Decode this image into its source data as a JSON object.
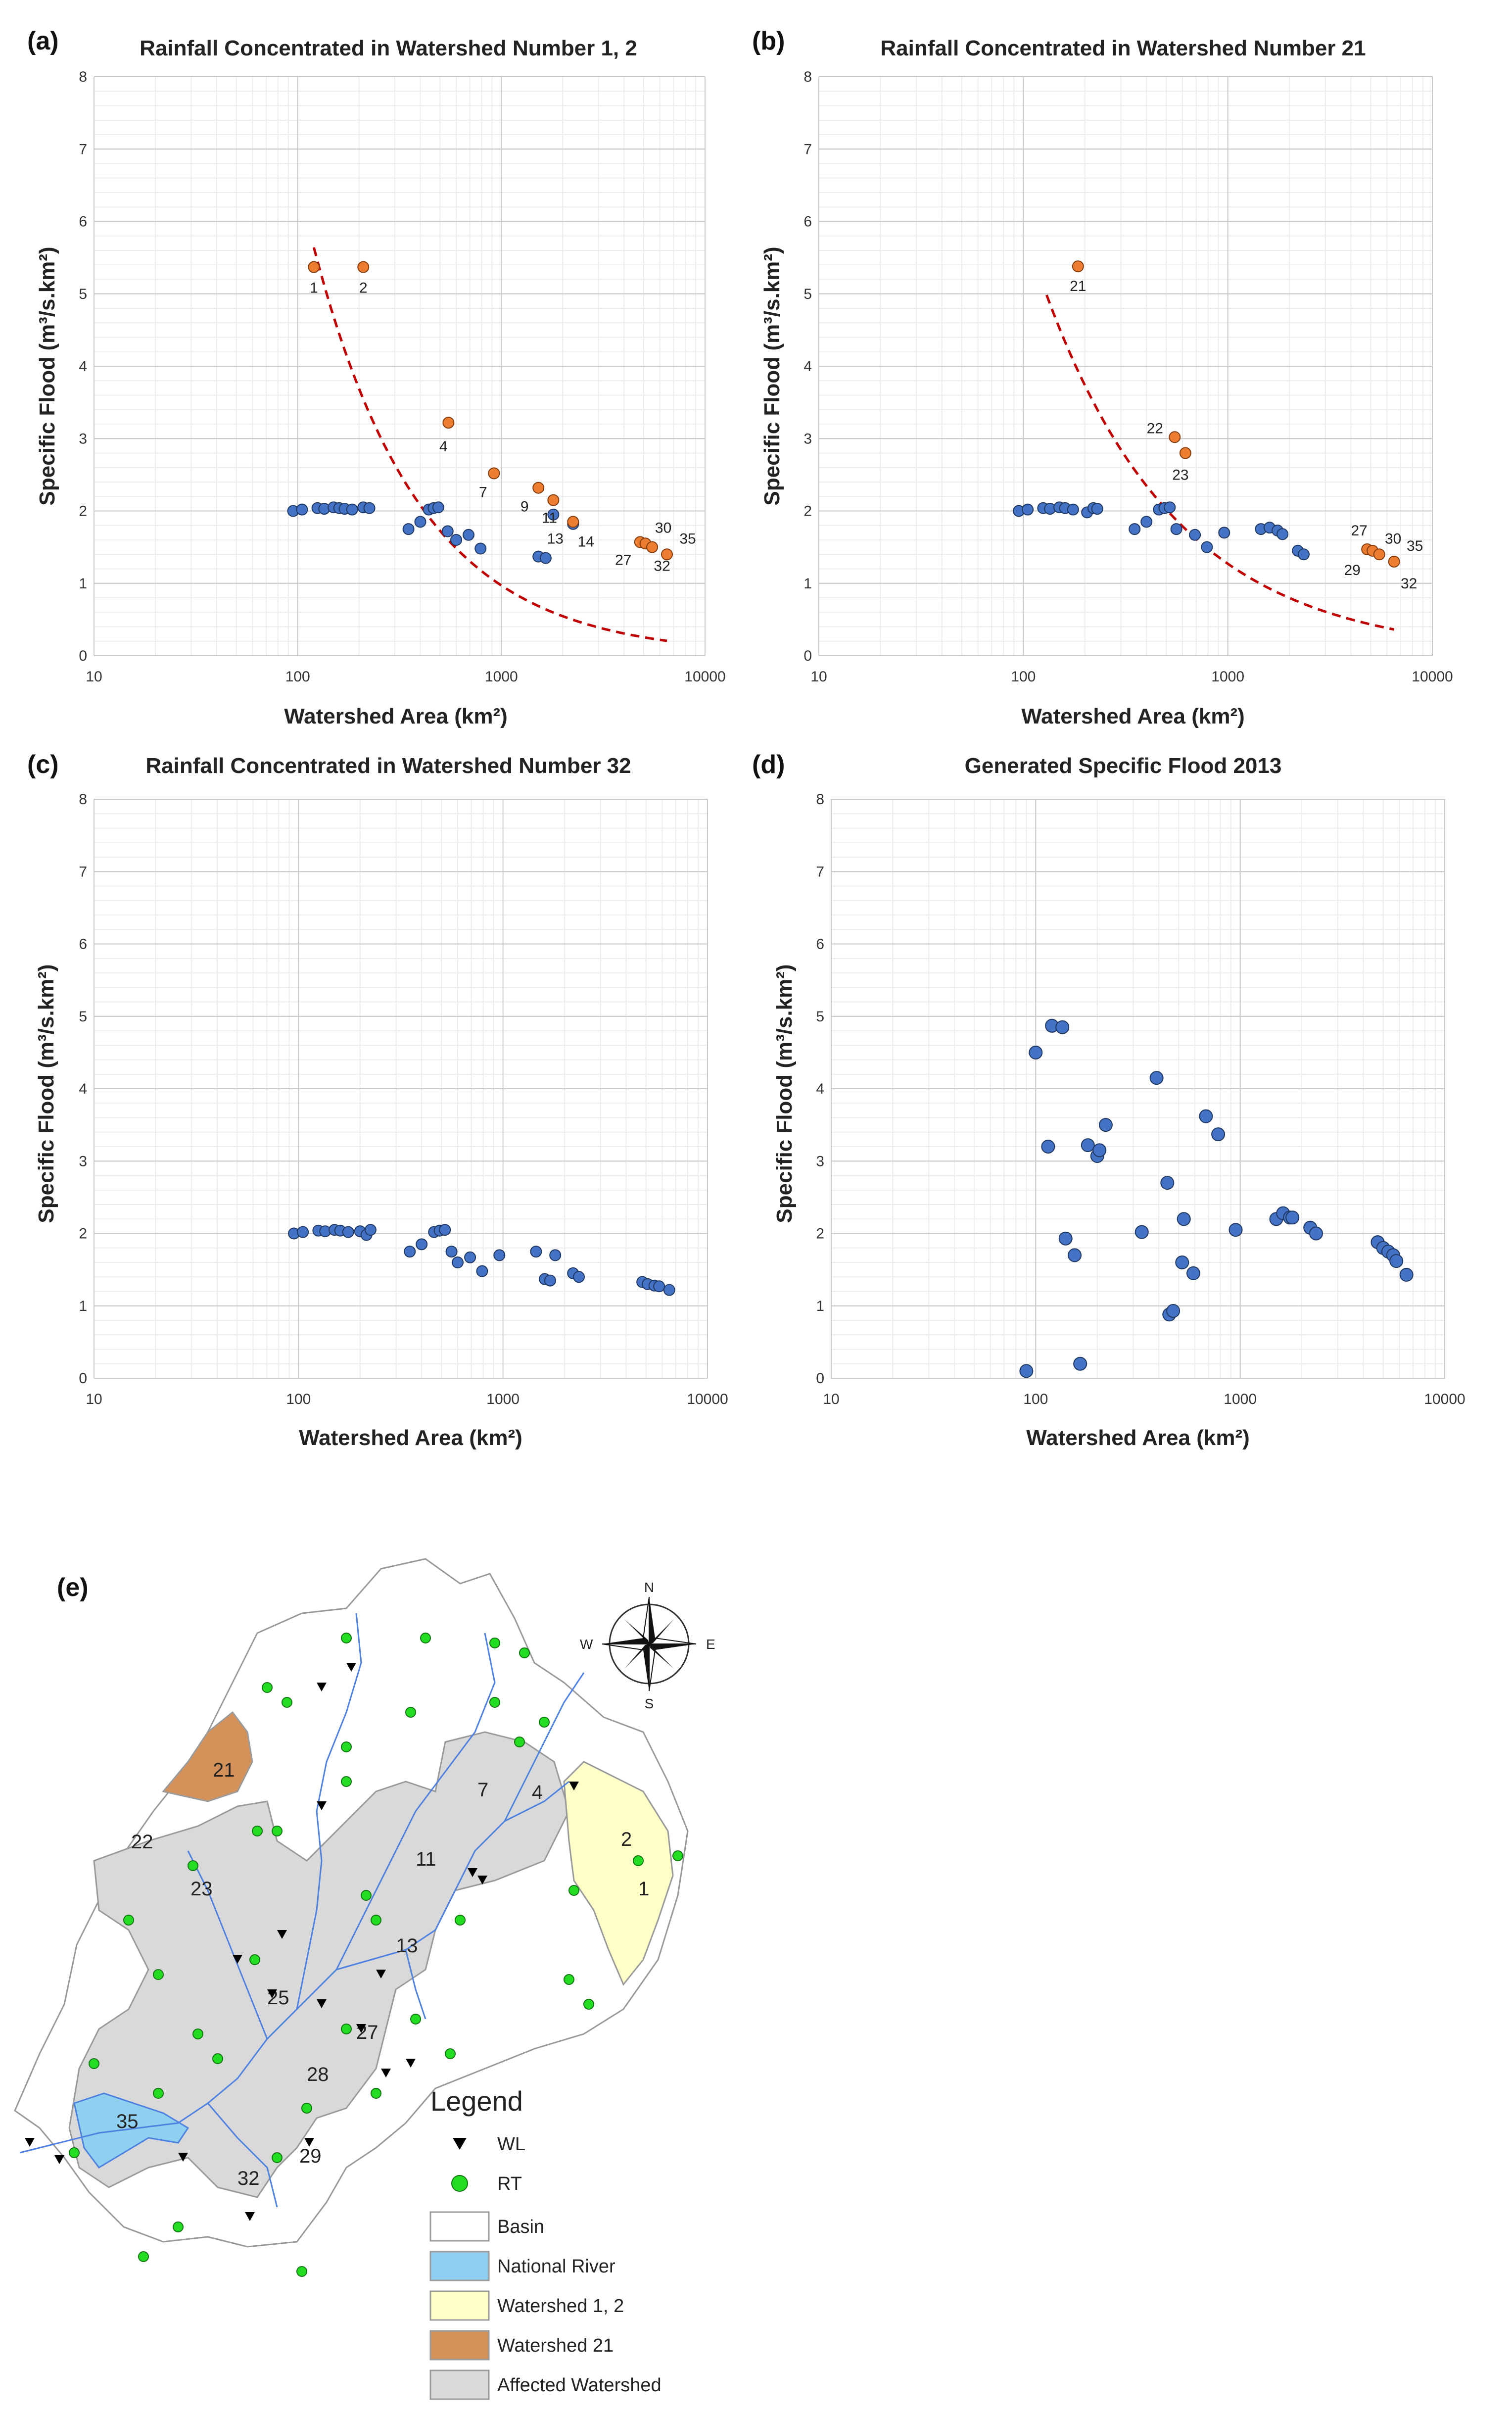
{
  "colors": {
    "blue_point": "#4472c4",
    "blue_edge": "#1f3864",
    "orange_point": "#ed7d31",
    "orange_edge": "#843c0c",
    "trend": "#c00000",
    "watershed_12": "#ffffc8",
    "watershed_21": "#d4925a",
    "affected": "#d9d9d9",
    "river": "#4f81e0",
    "national_river": "#8fd0f0",
    "rt": "#22dd22"
  },
  "chart_data": [
    {
      "panel": "(a)",
      "type": "scatter",
      "title": "Rainfall Concentrated in Watershed Number 1, 2",
      "xlabel": "Watershed Area (km²)",
      "ylabel": "Specific Flood (m³/s.km²)",
      "xscale": "log",
      "xlim": [
        10,
        10000
      ],
      "ylim": [
        0,
        8
      ],
      "xticks": [
        "10",
        "100",
        "1000",
        "10000"
      ],
      "yticks": [
        "0",
        "1",
        "2",
        "3",
        "4",
        "5",
        "6",
        "7",
        "8"
      ],
      "grid": true,
      "series": [
        {
          "style": "blue",
          "points": [
            [
              95,
              2.0
            ],
            [
              105,
              2.02
            ],
            [
              125,
              2.04
            ],
            [
              135,
              2.03
            ],
            [
              150,
              2.05
            ],
            [
              160,
              2.04
            ],
            [
              170,
              2.03
            ],
            [
              185,
              2.02
            ],
            [
              210,
              2.05
            ],
            [
              225,
              2.04
            ],
            [
              350,
              1.75
            ],
            [
              400,
              1.85
            ],
            [
              440,
              2.02
            ],
            [
              465,
              2.04
            ],
            [
              490,
              2.05
            ],
            [
              545,
              1.72
            ],
            [
              600,
              1.6
            ],
            [
              690,
              1.67
            ],
            [
              790,
              1.48
            ],
            [
              1520,
              1.37
            ],
            [
              1650,
              1.35
            ],
            [
              1800,
              1.95
            ],
            [
              2250,
              1.82
            ]
          ]
        },
        {
          "style": "orange",
          "points": [
            [
              120,
              5.37
            ],
            [
              210,
              5.37
            ],
            [
              550,
              3.22
            ],
            [
              920,
              2.52
            ],
            [
              1520,
              2.32
            ],
            [
              1800,
              2.15
            ],
            [
              2250,
              1.85
            ],
            [
              4800,
              1.57
            ],
            [
              5100,
              1.55
            ],
            [
              5500,
              1.5
            ],
            [
              6500,
              1.4
            ]
          ]
        }
      ],
      "trend": {
        "x": [
          120,
          6500
        ],
        "a": 300,
        "b": -0.83
      },
      "point_labels": [
        {
          "text": "1",
          "x": 120,
          "y": 5.37
        },
        {
          "text": "2",
          "x": 210,
          "y": 5.37
        },
        {
          "text": "4",
          "x": 550,
          "y": 3.22
        },
        {
          "text": "7",
          "x": 920,
          "y": 2.52
        },
        {
          "text": "9",
          "x": 1520,
          "y": 2.32
        },
        {
          "text": "11",
          "x": 1800,
          "y": 2.15
        },
        {
          "text": "13",
          "x": 2250,
          "y": 1.85
        },
        {
          "text": "14",
          "x": 2250,
          "y": 1.85
        },
        {
          "text": "30",
          "x": 5100,
          "y": 1.55
        },
        {
          "text": "35",
          "x": 6500,
          "y": 1.4
        },
        {
          "text": "27",
          "x": 4800,
          "y": 1.57
        },
        {
          "text": "32",
          "x": 5500,
          "y": 1.5
        }
      ]
    },
    {
      "panel": "(b)",
      "type": "scatter",
      "title": "Rainfall Concentrated in Watershed Number 21",
      "xlabel": "Watershed Area (km²)",
      "ylabel": "Specific Flood (m³/s.km²)",
      "xscale": "log",
      "xlim": [
        10,
        10000
      ],
      "ylim": [
        0,
        8
      ],
      "xticks": [
        "10",
        "100",
        "1000",
        "10000"
      ],
      "yticks": [
        "0",
        "1",
        "2",
        "3",
        "4",
        "5",
        "6",
        "7",
        "8"
      ],
      "grid": true,
      "series": [
        {
          "style": "blue",
          "points": [
            [
              95,
              2.0
            ],
            [
              105,
              2.02
            ],
            [
              125,
              2.04
            ],
            [
              135,
              2.03
            ],
            [
              150,
              2.05
            ],
            [
              160,
              2.04
            ],
            [
              175,
              2.02
            ],
            [
              205,
              1.98
            ],
            [
              220,
              2.04
            ],
            [
              230,
              2.03
            ],
            [
              350,
              1.75
            ],
            [
              400,
              1.85
            ],
            [
              460,
              2.02
            ],
            [
              490,
              2.04
            ],
            [
              520,
              2.05
            ],
            [
              560,
              1.75
            ],
            [
              690,
              1.67
            ],
            [
              790,
              1.5
            ],
            [
              960,
              1.7
            ],
            [
              1450,
              1.75
            ],
            [
              1600,
              1.77
            ],
            [
              1750,
              1.73
            ],
            [
              1850,
              1.68
            ],
            [
              2200,
              1.45
            ],
            [
              2350,
              1.4
            ]
          ]
        },
        {
          "style": "orange",
          "points": [
            [
              185,
              5.38
            ],
            [
              550,
              3.02
            ],
            [
              620,
              2.8
            ],
            [
              4800,
              1.47
            ],
            [
              5100,
              1.45
            ],
            [
              5500,
              1.4
            ],
            [
              6500,
              1.3
            ]
          ]
        }
      ],
      "trend": {
        "x": [
          130,
          6500
        ],
        "a": 130,
        "b": -0.67
      },
      "point_labels": [
        {
          "text": "21",
          "x": 185,
          "y": 5.38
        },
        {
          "text": "22",
          "x": 550,
          "y": 3.02
        },
        {
          "text": "23",
          "x": 620,
          "y": 2.8
        },
        {
          "text": "27",
          "x": 4800,
          "y": 1.47
        },
        {
          "text": "30",
          "x": 5500,
          "y": 1.4
        },
        {
          "text": "35",
          "x": 6500,
          "y": 1.3
        },
        {
          "text": "29",
          "x": 4800,
          "y": 1.47
        },
        {
          "text": "32",
          "x": 6500,
          "y": 1.3
        }
      ]
    },
    {
      "panel": "(c)",
      "type": "scatter",
      "title": "Rainfall Concentrated in Watershed Number 32",
      "xlabel": "Watershed Area (km²)",
      "ylabel": "Specific Flood (m³/s.km²)",
      "xscale": "log",
      "xlim": [
        10,
        10000
      ],
      "ylim": [
        0,
        8
      ],
      "xticks": [
        "10",
        "100",
        "1000",
        "10000"
      ],
      "yticks": [
        "0",
        "1",
        "2",
        "3",
        "4",
        "5",
        "6",
        "7",
        "8"
      ],
      "grid": true,
      "series": [
        {
          "style": "blue",
          "points": [
            [
              95,
              2.0
            ],
            [
              105,
              2.02
            ],
            [
              125,
              2.04
            ],
            [
              135,
              2.03
            ],
            [
              150,
              2.05
            ],
            [
              160,
              2.04
            ],
            [
              175,
              2.02
            ],
            [
              200,
              2.03
            ],
            [
              215,
              1.98
            ],
            [
              225,
              2.05
            ],
            [
              350,
              1.75
            ],
            [
              400,
              1.85
            ],
            [
              460,
              2.02
            ],
            [
              490,
              2.04
            ],
            [
              520,
              2.05
            ],
            [
              560,
              1.75
            ],
            [
              600,
              1.6
            ],
            [
              690,
              1.67
            ],
            [
              790,
              1.48
            ],
            [
              960,
              1.7
            ],
            [
              1450,
              1.75
            ],
            [
              1600,
              1.37
            ],
            [
              1700,
              1.35
            ],
            [
              1800,
              1.7
            ],
            [
              2200,
              1.45
            ],
            [
              2350,
              1.4
            ],
            [
              4800,
              1.33
            ],
            [
              5100,
              1.3
            ],
            [
              5500,
              1.28
            ],
            [
              5800,
              1.27
            ],
            [
              6500,
              1.22
            ]
          ]
        }
      ]
    },
    {
      "panel": "(d)",
      "type": "scatter",
      "title": "Generated Specific Flood 2013",
      "xlabel": "Watershed Area (km²)",
      "ylabel": "Specific Flood (m³/s.km²)",
      "xscale": "log",
      "xlim": [
        10,
        10000
      ],
      "ylim": [
        0,
        8
      ],
      "xticks": [
        "10",
        "100",
        "1000",
        "10000"
      ],
      "yticks": [
        "0",
        "1",
        "2",
        "3",
        "4",
        "5",
        "6",
        "7",
        "8"
      ],
      "grid": true,
      "series": [
        {
          "style": "blue",
          "points": [
            [
              90,
              0.1
            ],
            [
              100,
              4.5
            ],
            [
              115,
              3.2
            ],
            [
              120,
              4.87
            ],
            [
              135,
              4.85
            ],
            [
              140,
              1.93
            ],
            [
              155,
              1.7
            ],
            [
              165,
              0.2
            ],
            [
              180,
              3.22
            ],
            [
              200,
              3.07
            ],
            [
              205,
              3.15
            ],
            [
              220,
              3.5
            ],
            [
              330,
              2.02
            ],
            [
              390,
              4.15
            ],
            [
              440,
              2.7
            ],
            [
              450,
              0.88
            ],
            [
              470,
              0.93
            ],
            [
              520,
              1.6
            ],
            [
              530,
              2.2
            ],
            [
              590,
              1.45
            ],
            [
              680,
              3.62
            ],
            [
              780,
              3.37
            ],
            [
              950,
              2.05
            ],
            [
              1500,
              2.2
            ],
            [
              1620,
              2.28
            ],
            [
              1750,
              2.22
            ],
            [
              1800,
              2.22
            ],
            [
              2200,
              2.08
            ],
            [
              2350,
              2.0
            ],
            [
              4700,
              1.88
            ],
            [
              5000,
              1.8
            ],
            [
              5300,
              1.75
            ],
            [
              5600,
              1.7
            ],
            [
              5800,
              1.62
            ],
            [
              6500,
              1.43
            ]
          ]
        }
      ]
    }
  ],
  "map": {
    "panel": "(e)",
    "compass": {
      "n": "N",
      "e": "E",
      "s": "S",
      "w": "W"
    },
    "labels": [
      "21",
      "4",
      "7",
      "22",
      "2",
      "11",
      "23",
      "1",
      "13",
      "25",
      "27",
      "28",
      "35",
      "29",
      "32"
    ],
    "legend": {
      "title": "Legend",
      "items": [
        "WL",
        "RT",
        "Basin",
        "National River",
        "Watershed 1, 2",
        "Watershed 21",
        "Affected Watershed"
      ]
    }
  }
}
